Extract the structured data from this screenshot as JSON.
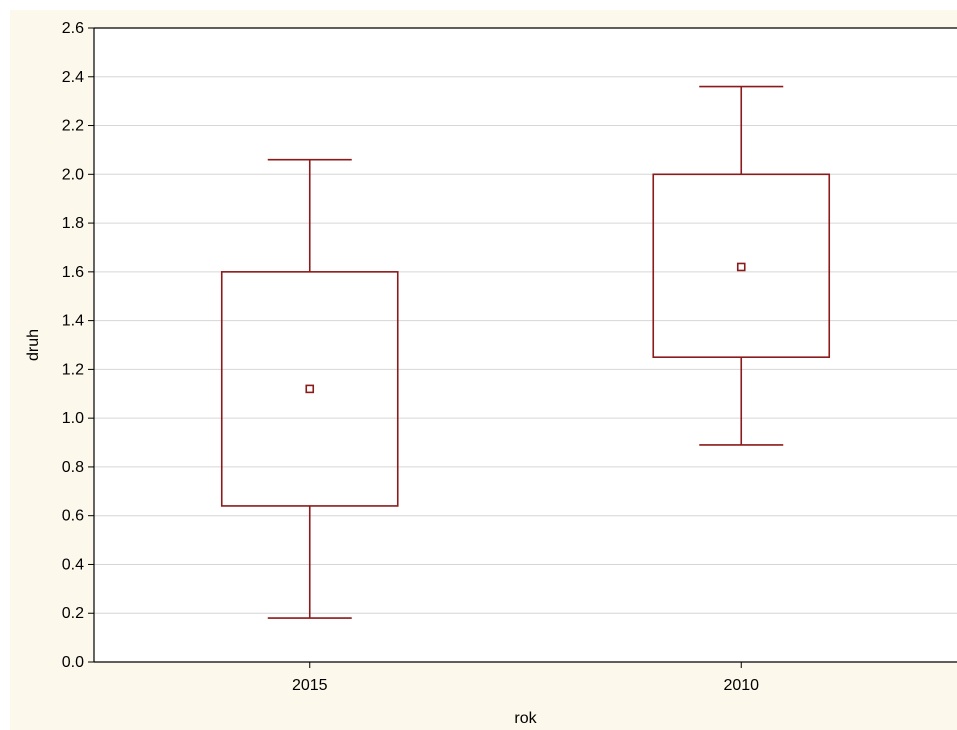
{
  "chart_data": {
    "type": "box",
    "xlabel": "rok",
    "ylabel": "druh",
    "ylim": [
      0.0,
      2.6
    ],
    "yticks": [
      "0.0",
      "0.2",
      "0.4",
      "0.6",
      "0.8",
      "1.0",
      "1.2",
      "1.4",
      "1.6",
      "1.8",
      "2.0",
      "2.2",
      "2.4",
      "2.6"
    ],
    "categories": [
      "2015",
      "2010"
    ],
    "boxes": [
      {
        "category": "2015",
        "whisker_low": 0.18,
        "box_low": 0.64,
        "center": 1.12,
        "box_high": 1.6,
        "whisker_high": 2.06
      },
      {
        "category": "2010",
        "whisker_low": 0.89,
        "box_low": 1.25,
        "center": 1.62,
        "box_high": 2.0,
        "whisker_high": 2.36
      }
    ],
    "grid": true,
    "colors": {
      "frame_bg": "#fdf8ec",
      "plot_bg": "#ffffff",
      "grid": "#d6d6d6",
      "axis": "#000000",
      "box": "#8b1a1a"
    }
  }
}
